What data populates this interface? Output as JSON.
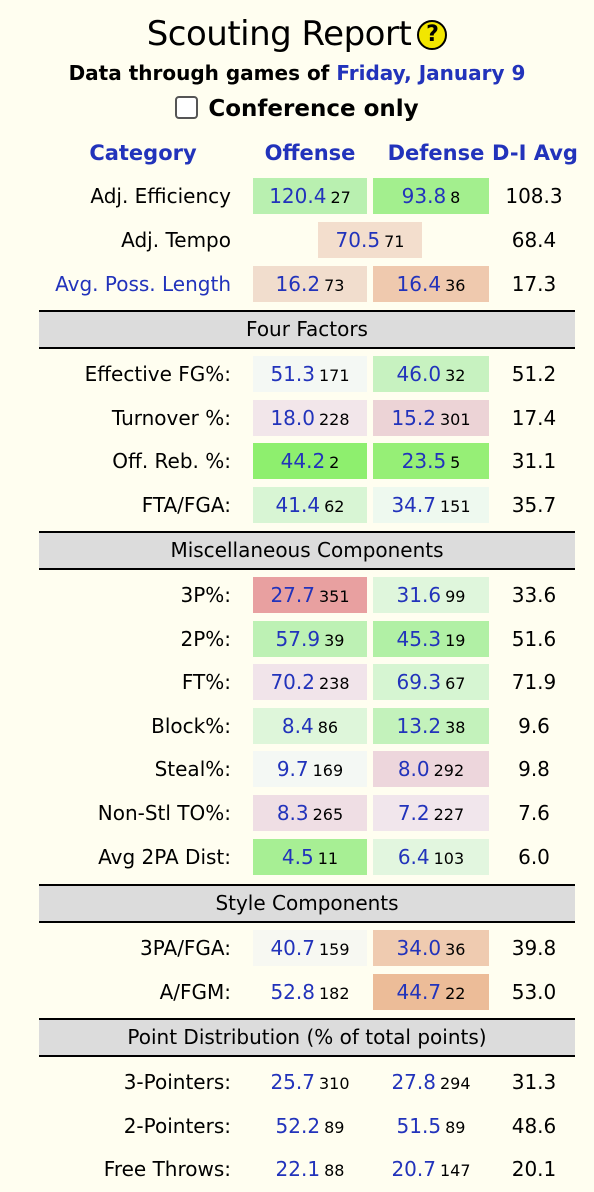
{
  "title": "Scouting Report",
  "help_icon": "question-mark-icon",
  "subtitle": {
    "prefix": "Data through games of",
    "date": "Friday, January 9"
  },
  "conference_only_label": "Conference only",
  "headers": {
    "category": "Category",
    "offense": "Offense",
    "defense": "Defense",
    "avg": "D-I Avg"
  },
  "top_rows": [
    {
      "label": "Adj. Efficiency",
      "off": {
        "v": "120.4",
        "r": "27",
        "bg": "#b9f0b0"
      },
      "def": {
        "v": "93.8",
        "r": "8",
        "bg": "#a3ef8e"
      },
      "avg": "108.3"
    },
    {
      "label": "Avg. Poss. Length",
      "off": {
        "v": "16.2",
        "r": "73",
        "bg": "#f1ddcd"
      },
      "def": {
        "v": "16.4",
        "r": "36",
        "bg": "#efc9ae"
      },
      "avg": "17.3"
    }
  ],
  "tempo_row": {
    "label": "Adj. Tempo",
    "v": "70.5",
    "r": "71",
    "bg": "#f3decd",
    "avg": "68.4"
  },
  "sections": [
    {
      "title": "Four Factors",
      "rows": [
        {
          "label": "Effective FG%:",
          "off": {
            "v": "51.3",
            "r": "171",
            "bg": "#f4f8f4"
          },
          "def": {
            "v": "46.0",
            "r": "32",
            "bg": "#c7f2c0"
          },
          "avg": "51.2"
        },
        {
          "label": "Turnover %:",
          "off": {
            "v": "18.0",
            "r": "228",
            "bg": "#f2e6ea"
          },
          "def": {
            "v": "15.2",
            "r": "301",
            "bg": "#ecd3d6"
          },
          "avg": "17.4"
        },
        {
          "label": "Off. Reb. %:",
          "off": {
            "v": "44.2",
            "r": "2",
            "bg": "#8eef6e"
          },
          "def": {
            "v": "23.5",
            "r": "5",
            "bg": "#96ef76"
          },
          "avg": "31.1"
        },
        {
          "label": "FTA/FGA:",
          "off": {
            "v": "41.4",
            "r": "62",
            "bg": "#d8f5d4"
          },
          "def": {
            "v": "34.7",
            "r": "151",
            "bg": "#eef9ef"
          },
          "avg": "35.7"
        }
      ]
    },
    {
      "title": "Miscellaneous Components",
      "rows": [
        {
          "label": "3P%:",
          "off": {
            "v": "27.7",
            "r": "351",
            "bg": "#e8a0a0"
          },
          "def": {
            "v": "31.6",
            "r": "99",
            "bg": "#dff6dc"
          },
          "avg": "33.6"
        },
        {
          "label": "2P%:",
          "off": {
            "v": "57.9",
            "r": "39",
            "bg": "#bdf1b4"
          },
          "def": {
            "v": "45.3",
            "r": "19",
            "bg": "#b1f0a5"
          },
          "avg": "51.6"
        },
        {
          "label": "FT%:",
          "off": {
            "v": "70.2",
            "r": "238",
            "bg": "#f1e4ea"
          },
          "def": {
            "v": "69.3",
            "r": "67",
            "bg": "#d6f5d2"
          },
          "avg": "71.9"
        },
        {
          "label": "Block%:",
          "off": {
            "v": "8.4",
            "r": "86",
            "bg": "#def6da"
          },
          "def": {
            "v": "13.2",
            "r": "38",
            "bg": "#c3f2bb"
          },
          "avg": "9.6"
        },
        {
          "label": "Steal%:",
          "off": {
            "v": "9.7",
            "r": "169",
            "bg": "#f4f8f4"
          },
          "def": {
            "v": "8.0",
            "r": "292",
            "bg": "#edd6dc"
          },
          "avg": "9.8"
        },
        {
          "label": "Non-Stl TO%:",
          "off": {
            "v": "8.3",
            "r": "265",
            "bg": "#efdee4"
          },
          "def": {
            "v": "7.2",
            "r": "227",
            "bg": "#f1e6ec"
          },
          "avg": "7.6"
        },
        {
          "label": "Avg 2PA Dist:",
          "off": {
            "v": "4.5",
            "r": "11",
            "bg": "#a7ef94"
          },
          "def": {
            "v": "6.4",
            "r": "103",
            "bg": "#e2f6df"
          },
          "avg": "6.0"
        }
      ]
    },
    {
      "title": "Style Components",
      "rows": [
        {
          "label": "3PA/FGA:",
          "off": {
            "v": "40.7",
            "r": "159",
            "bg": "#f7f8f2"
          },
          "def": {
            "v": "34.0",
            "r": "36",
            "bg": "#efcbb0"
          },
          "avg": "39.8"
        },
        {
          "label": "A/FGM:",
          "off": {
            "v": "52.8",
            "r": "182",
            "bg": "#fffef0"
          },
          "def": {
            "v": "44.7",
            "r": "22",
            "bg": "#ecbc98"
          },
          "avg": "53.0"
        }
      ]
    },
    {
      "title": "Point Distribution (% of total points)",
      "rows": [
        {
          "label": "3-Pointers:",
          "off": {
            "v": "25.7",
            "r": "310",
            "bg": "#fffef0"
          },
          "def": {
            "v": "27.8",
            "r": "294",
            "bg": "#fffef0"
          },
          "avg": "31.3"
        },
        {
          "label": "2-Pointers:",
          "off": {
            "v": "52.2",
            "r": "89",
            "bg": "#fffef0"
          },
          "def": {
            "v": "51.5",
            "r": "89",
            "bg": "#fffef0"
          },
          "avg": "48.6"
        },
        {
          "label": "Free Throws:",
          "off": {
            "v": "22.1",
            "r": "88",
            "bg": "#fffef0"
          },
          "def": {
            "v": "20.7",
            "r": "147",
            "bg": "#fffef0"
          },
          "avg": "20.1"
        }
      ]
    }
  ]
}
